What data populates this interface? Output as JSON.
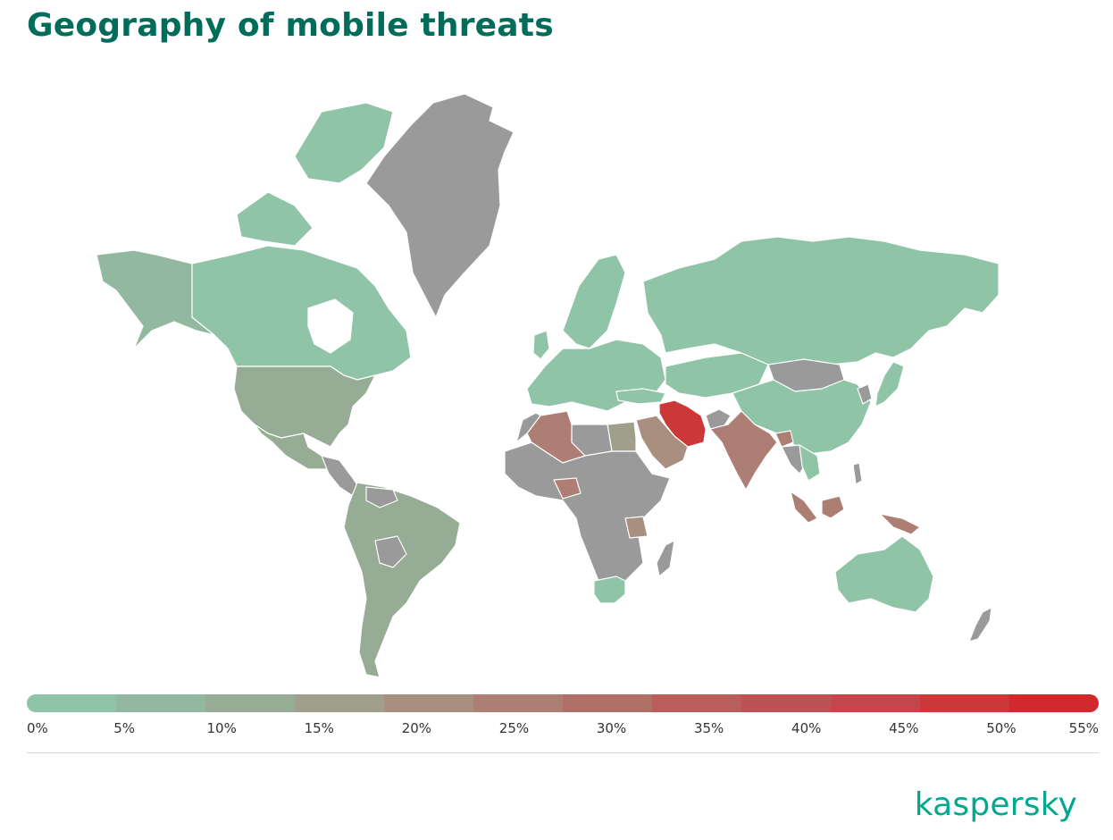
{
  "title": "Geography of mobile threats",
  "legend": {
    "labels": [
      "0%",
      "5%",
      "10%",
      "15%",
      "20%",
      "25%",
      "30%",
      "35%",
      "40%",
      "45%",
      "50%",
      "55%"
    ],
    "colors": [
      "#8fc4a7",
      "#92b9a0",
      "#96ac95",
      "#9f9f8c",
      "#a88f80",
      "#ad7e73",
      "#b06f67",
      "#b85f5b",
      "#bd5252",
      "#c5464a",
      "#cc3738",
      "#d22a2c"
    ]
  },
  "map": {
    "no_data_color": "#9a9a9a",
    "regions": [
      {
        "name": "greenland",
        "level": "no-data"
      },
      {
        "name": "canada",
        "level": 0
      },
      {
        "name": "alaska",
        "level": 1
      },
      {
        "name": "usa",
        "level": 2
      },
      {
        "name": "mexico",
        "level": 2
      },
      {
        "name": "south-america",
        "level": 2
      },
      {
        "name": "russia",
        "level": 0
      },
      {
        "name": "europe",
        "level": 0
      },
      {
        "name": "china",
        "level": 0
      },
      {
        "name": "mongolia",
        "level": "no-data"
      },
      {
        "name": "iran",
        "level": 10
      },
      {
        "name": "india",
        "level": 5
      },
      {
        "name": "algeria",
        "level": 5
      },
      {
        "name": "egypt",
        "level": 3
      },
      {
        "name": "saudi-arabia",
        "level": 4
      },
      {
        "name": "africa-central",
        "level": "no-data"
      },
      {
        "name": "south-africa",
        "level": 0
      },
      {
        "name": "australia",
        "level": 0
      },
      {
        "name": "indonesia",
        "level": 5
      }
    ]
  },
  "brand": "kaspersky"
}
